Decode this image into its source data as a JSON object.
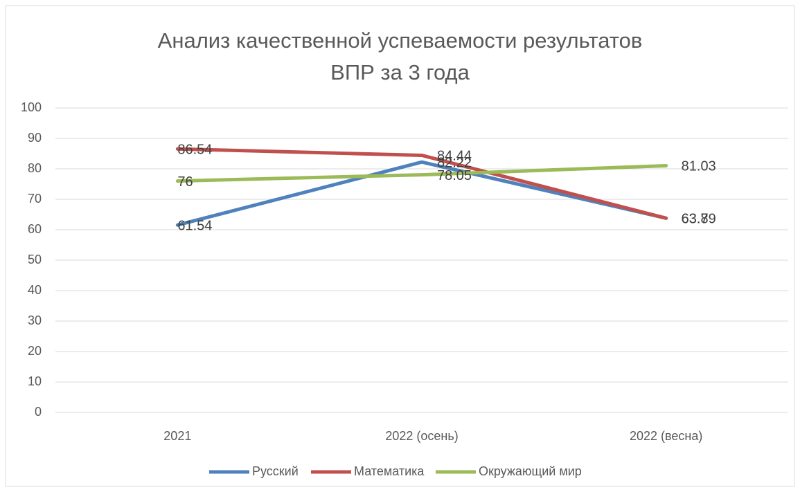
{
  "chart_data": {
    "type": "line",
    "title": "Анализ качественной успеваемости результатов ВПР за 3 года",
    "categories": [
      "2021",
      "2022 (осень)",
      "2022 (весна)"
    ],
    "series": [
      {
        "name": "Русский",
        "color": "#4f81bd",
        "values": [
          61.54,
          82.22,
          63.8
        ]
      },
      {
        "name": "Математика",
        "color": "#c0504d",
        "values": [
          86.54,
          84.44,
          63.79
        ]
      },
      {
        "name": "Окружающий мир",
        "color": "#9bbb59",
        "values": [
          76,
          78.05,
          81.03
        ]
      }
    ],
    "ylim": [
      0,
      100
    ],
    "yticks": [
      0,
      10,
      20,
      30,
      40,
      50,
      60,
      70,
      80,
      90,
      100
    ],
    "grid": true,
    "legend": "bottom"
  }
}
